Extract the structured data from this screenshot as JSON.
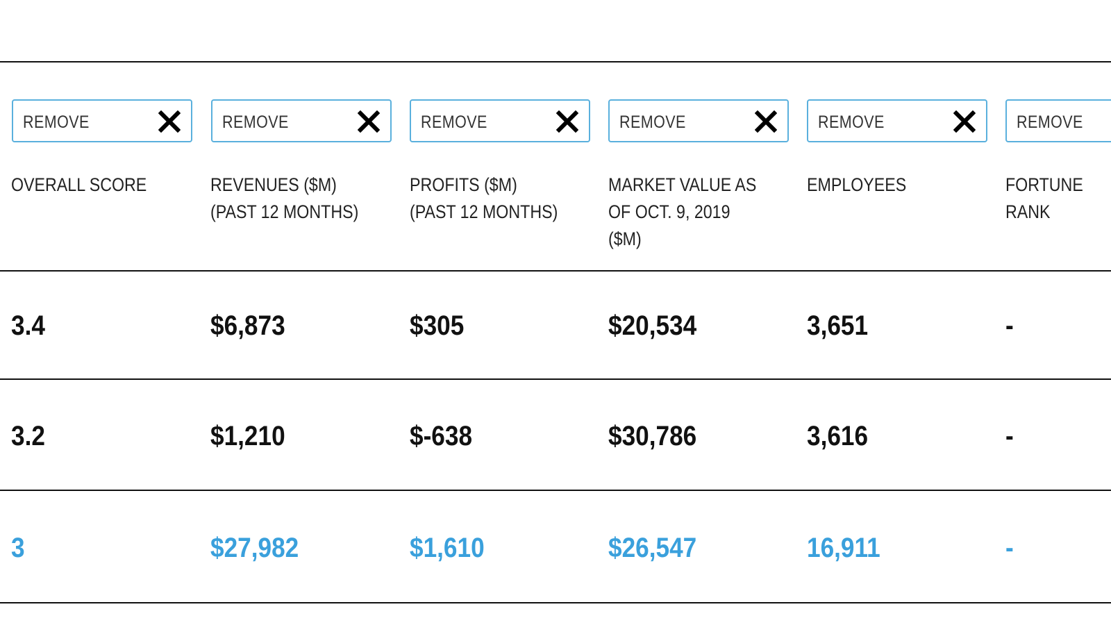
{
  "controls": {
    "remove_label": "REMOVE"
  },
  "columns": [
    {
      "header": "OVERALL SCORE"
    },
    {
      "header": "REVENUES ($M)\n(PAST 12 MONTHS)"
    },
    {
      "header": "PROFITS ($M)\n(PAST 12 MONTHS)"
    },
    {
      "header": "MARKET VALUE AS\nOF OCT. 9, 2019\n($M)"
    },
    {
      "header": "EMPLOYEES"
    },
    {
      "header": "FORTUNE\nRANK"
    }
  ],
  "rows": [
    {
      "cells": [
        "3.4",
        "$6,873",
        "$305",
        "$20,534",
        "3,651",
        "-"
      ]
    },
    {
      "cells": [
        "3.2",
        "$1,210",
        "$-638",
        "$30,786",
        "3,616",
        "-"
      ]
    },
    {
      "cells": [
        "3",
        "$27,982",
        "$1,610",
        "$26,547",
        "16,911",
        "-"
      ]
    }
  ],
  "colors": {
    "border_accent": "#5ab0dd",
    "highlight_row_text": "#3aa0dc",
    "rule_line": "#111111"
  }
}
